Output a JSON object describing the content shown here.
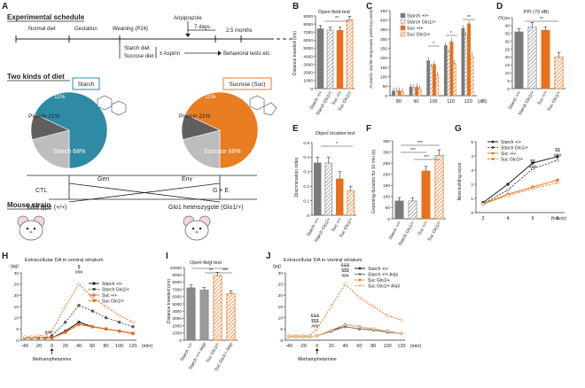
{
  "panels": {
    "A": {
      "letter": "A",
      "heading_schedule": "Experimental schedule",
      "timeline": {
        "normal_diet": "Normal diet",
        "gestation": "Gestation",
        "weaning": "Weaning (P24)",
        "aripiprazole": "Aripiprazole",
        "seven_days": "7 days",
        "duration": "2.5 months",
        "starch_diet": "Starch diet",
        "sucrose_diet": "Sucrose diet",
        "aspirin": "± Aspirin",
        "behavioral": "Behavioral tests etc."
      },
      "heading_diet": "Two kinds of diet",
      "starch_pie": {
        "title": "Starch",
        "slices": [
          {
            "label": "Starch 68%",
            "value": 68,
            "color": "#2f8aa3"
          },
          {
            "label": "Protein 21%",
            "value": 21,
            "color": "#bdbdbd"
          },
          {
            "label": "Fat 11%",
            "value": 11,
            "color": "#5f5f5f"
          }
        ],
        "fat_label": "Fat",
        "fat_pct": "11%"
      },
      "sucrose_pie": {
        "title": "Sucrose (Suc)",
        "slices": [
          {
            "label": "Sucrose 68%",
            "value": 68,
            "color": "#e87d22"
          },
          {
            "label": "Protein 21%",
            "value": 21,
            "color": "#bdbdbd"
          },
          {
            "label": "Fat 11%",
            "value": 11,
            "color": "#5f5f5f"
          }
        ],
        "fat_label": "Fat",
        "fat_pct": "11%"
      },
      "ctl": "CTL",
      "gen": "Gen",
      "env": "Env",
      "gxe": "G × E",
      "heading_strain": "Mouse strain",
      "wild_type": "Wild type (+/+)",
      "glo1_het": "Glo1 heterozygote (Glo1/+)"
    },
    "B": {
      "letter": "B",
      "title": "Open-field test",
      "ylabel": "Distance traveled (cm)",
      "yticks": [
        "0",
        "1000",
        "2000",
        "3000",
        "4000",
        "5000",
        "6000",
        "7000",
        "8000",
        "9000"
      ],
      "sig": "**",
      "xlabels": [
        "Starch +/+",
        "Starch Glo1/+",
        "Suc +/+",
        "Suc Glo1/+"
      ]
    },
    "C": {
      "letter": "C",
      "ylabel": "Acoustic startle responses (arbitrary units)",
      "legend": [
        "Starch +/+",
        "Starch Glo1/+",
        "Suc +/+",
        "Suc Glo1/+"
      ],
      "yticks": [
        "0",
        "50",
        "100",
        "150",
        "200",
        "250",
        "300",
        "350",
        "400",
        "450"
      ],
      "xticks": [
        "80",
        "90",
        "100",
        "110",
        "120"
      ],
      "xunit": "(dB)",
      "sig": [
        "*",
        "*",
        "**"
      ]
    },
    "D": {
      "letter": "D",
      "title": "PPI (70 dB)",
      "unit": "(%)",
      "yticks": [
        "0",
        "5",
        "10",
        "15",
        "20",
        "25",
        "30",
        "35",
        "40",
        "45"
      ],
      "sig": "**",
      "xlabels": [
        "Starch +/+",
        "Starch Glo1/+",
        "Suc +/+",
        "Suc Glo1/+"
      ]
    },
    "E": {
      "letter": "E",
      "title": "Object location test",
      "ylabel": "Discrimination index",
      "yticks": [
        "0",
        "0.1",
        "0.2",
        "0.3",
        "0.4",
        "0.5"
      ],
      "sig": "*",
      "xlabels": [
        "Starch +/+",
        "Starch Glo1/+",
        "Suc +/+",
        "Suc Glo1/+"
      ]
    },
    "F": {
      "letter": "F",
      "ylabel": "Grooming duration for 10 min (s)",
      "yticks": [
        "0",
        "50",
        "100",
        "150",
        "200",
        "250",
        "300",
        "350"
      ],
      "sig": [
        "***",
        "***",
        "***"
      ],
      "xlabels": [
        "Starch +/+",
        "Starch Glo1/+",
        "Suc +/+",
        "Suc Glo1/+"
      ]
    },
    "G": {
      "letter": "G",
      "ylabel": "Nest-building score",
      "legend": [
        "Starch +/+",
        "Starch Glo1/+",
        "Suc +/+",
        "Suc Glo1/+"
      ],
      "yticks": [
        "0",
        "1",
        "2",
        "3",
        "4",
        "5"
      ],
      "xticks": [
        "2",
        "4",
        "6",
        "8"
      ],
      "xunit": "(hours)",
      "sig6": [
        "$$",
        "###"
      ],
      "sig8": [
        "$$",
        "###"
      ]
    },
    "H": {
      "letter": "H",
      "title": "Extracellular DA in ventral striatum",
      "unit": "(pg)",
      "yticks": [
        "0",
        "5",
        "10",
        "15",
        "20",
        "25",
        "30"
      ],
      "xticks": [
        "-40",
        "-20",
        "0",
        "20",
        "40",
        "60",
        "80",
        "100",
        "120"
      ],
      "xunit": "(min)",
      "legend": [
        "Starch +/+",
        "Starch Glo1/+",
        "Suc +/+",
        "Suc Glo1/+"
      ],
      "drug": "Methamphetamine",
      "sig_peak": [
        "$",
        "###"
      ],
      "sig_early": "###"
    },
    "I": {
      "letter": "I",
      "title": "Open-field test",
      "ylabel": "Distance traveled (cm)",
      "yticks": [
        "0",
        "1000",
        "2000",
        "3000",
        "4000",
        "5000",
        "6000",
        "7000",
        "8000",
        "9000",
        "10000"
      ],
      "sig": [
        "*",
        "**",
        "***"
      ],
      "xlabels": [
        "Starch +/+",
        "Starch +/+ Aripi",
        "Suc Glo1/+",
        "Suc Glo1/+ Aripi"
      ]
    },
    "J": {
      "letter": "J",
      "title": "Extracellular DA in ventral striatum",
      "unit": "(pg)",
      "yticks": [
        "0",
        "5",
        "10",
        "15",
        "20",
        "25",
        "30"
      ],
      "xticks": [
        "-40",
        "-20",
        "0",
        "20",
        "40",
        "60",
        "80",
        "100",
        "120"
      ],
      "xunit": "(min)",
      "legend": [
        "Starch +/+",
        "Starch +/+ Aripi",
        "Suc Glo1/+",
        "Suc Glo1/+ Aripi"
      ],
      "drug": "Methamphetamine",
      "sig_peak": [
        "&&&",
        "$$$",
        "###"
      ],
      "sig_early": [
        "&&&",
        "$$$",
        "###"
      ]
    }
  },
  "colors": {
    "starch_wt": "#6e6e6e",
    "starch_glo": "#9a9a9a",
    "suc_wt": "#e8701a",
    "suc_glo": "#e8701a",
    "aripi_starch": "#b0b0b0",
    "aripi_suc": "#f0c38e"
  },
  "chart_data": [
    {
      "id": "B",
      "type": "bar",
      "title": "Open-field test",
      "ylabel": "Distance traveled (cm)",
      "categories": [
        "Starch +/+",
        "Starch Glo1/+",
        "Suc +/+",
        "Suc Glo1/+"
      ],
      "values": [
        7400,
        7250,
        7200,
        8500
      ],
      "errors": [
        400,
        350,
        400,
        450
      ],
      "ylim": [
        0,
        9000
      ]
    },
    {
      "id": "C",
      "type": "bar",
      "ylabel": "Acoustic startle responses (arbitrary units)",
      "categories": [
        "80",
        "90",
        "100",
        "110",
        "120"
      ],
      "series": [
        {
          "name": "Starch +/+",
          "values": [
            25,
            45,
            185,
            265,
            355
          ]
        },
        {
          "name": "Starch Glo1/+",
          "values": [
            25,
            40,
            150,
            230,
            320
          ]
        },
        {
          "name": "Suc +/+",
          "values": [
            25,
            45,
            165,
            285,
            380
          ]
        },
        {
          "name": "Suc Glo1/+",
          "values": [
            20,
            35,
            105,
            170,
            210
          ]
        }
      ],
      "ylim": [
        0,
        450
      ]
    },
    {
      "id": "D",
      "type": "bar",
      "title": "PPI (70 dB)",
      "ylabel": "(%)",
      "categories": [
        "Starch +/+",
        "Starch Glo1/+",
        "Suc +/+",
        "Suc Glo1/+"
      ],
      "values": [
        36,
        39,
        37,
        20
      ],
      "errors": [
        2,
        3,
        2,
        3
      ],
      "ylim": [
        0,
        45
      ]
    },
    {
      "id": "E",
      "type": "bar",
      "title": "Object location test",
      "ylabel": "Discrimination index",
      "categories": [
        "Starch +/+",
        "Starch Glo1/+",
        "Suc +/+",
        "Suc Glo1/+"
      ],
      "values": [
        0.36,
        0.36,
        0.25,
        0.17
      ],
      "errors": [
        0.04,
        0.04,
        0.05,
        0.03
      ],
      "ylim": [
        0,
        0.5
      ]
    },
    {
      "id": "F",
      "type": "bar",
      "ylabel": "Grooming duration for 10 min (s)",
      "categories": [
        "Starch +/+",
        "Starch Glo1/+",
        "Suc +/+",
        "Suc Glo1/+"
      ],
      "values": [
        80,
        80,
        215,
        285
      ],
      "errors": [
        15,
        15,
        20,
        25
      ],
      "ylim": [
        0,
        350
      ]
    },
    {
      "id": "G",
      "type": "line",
      "ylabel": "Nest-building score",
      "xlabel": "(hours)",
      "x": [
        2,
        4,
        6,
        8
      ],
      "series": [
        {
          "name": "Starch +/+",
          "values": [
            0.7,
            2.0,
            3.5,
            3.95
          ]
        },
        {
          "name": "Starch Glo1/+",
          "values": [
            0.6,
            1.6,
            3.1,
            3.7
          ]
        },
        {
          "name": "Suc +/+",
          "values": [
            0.6,
            1.3,
            1.8,
            2.3
          ]
        },
        {
          "name": "Suc Glo1/+",
          "values": [
            0.6,
            1.2,
            1.7,
            2.1
          ]
        }
      ],
      "ylim": [
        0,
        5
      ]
    },
    {
      "id": "H",
      "type": "line",
      "title": "Extracellular DA in ventral striatum",
      "ylabel": "(pg)",
      "xlabel": "(min)",
      "x": [
        -40,
        -30,
        -20,
        -10,
        0,
        20,
        40,
        60,
        80,
        100,
        120
      ],
      "series": [
        {
          "name": "Starch +/+",
          "values": [
            1,
            1,
            1,
            1,
            1,
            4,
            8,
            6,
            5,
            4,
            3
          ]
        },
        {
          "name": "Starch Glo1/+",
          "values": [
            1,
            1,
            1,
            1,
            2,
            8,
            15.5,
            13,
            10,
            8,
            6
          ]
        },
        {
          "name": "Suc +/+",
          "values": [
            1,
            1,
            1,
            1,
            1,
            3.5,
            7,
            6,
            5,
            4,
            3
          ]
        },
        {
          "name": "Suc Glo1/+",
          "values": [
            1.5,
            1.5,
            2,
            2,
            4,
            15,
            25,
            19,
            15,
            11,
            8
          ]
        }
      ],
      "ylim": [
        0,
        30
      ]
    },
    {
      "id": "I",
      "type": "bar",
      "title": "Open-field test",
      "ylabel": "Distance traveled (cm)",
      "categories": [
        "Starch +/+",
        "Starch +/+ Aripi",
        "Suc Glo1/+",
        "Suc Glo1/+ Aripi"
      ],
      "values": [
        7200,
        6900,
        8900,
        6400
      ],
      "errors": [
        400,
        350,
        450,
        400
      ],
      "ylim": [
        0,
        10000
      ]
    },
    {
      "id": "J",
      "type": "line",
      "title": "Extracellular DA in ventral striatum",
      "ylabel": "(pg)",
      "xlabel": "(min)",
      "x": [
        -40,
        -30,
        -20,
        -10,
        0,
        20,
        40,
        60,
        80,
        100,
        120
      ],
      "series": [
        {
          "name": "Starch +/+",
          "values": [
            1.5,
            1.5,
            1.5,
            1.5,
            2,
            4,
            7,
            6,
            5,
            4,
            3
          ]
        },
        {
          "name": "Starch +/+ Aripi",
          "values": [
            1.5,
            1.5,
            1.5,
            1.5,
            2,
            4,
            6,
            5,
            4.5,
            3.5,
            3
          ]
        },
        {
          "name": "Suc Glo1/+",
          "values": [
            2,
            2,
            2,
            2,
            5,
            15,
            25,
            19,
            15,
            11,
            9
          ]
        },
        {
          "name": "Suc Glo1/+ Aripi",
          "values": [
            1.5,
            1.5,
            1.5,
            1.5,
            2,
            4.5,
            7,
            6,
            5,
            4,
            3
          ]
        }
      ],
      "ylim": [
        0,
        30
      ]
    }
  ]
}
